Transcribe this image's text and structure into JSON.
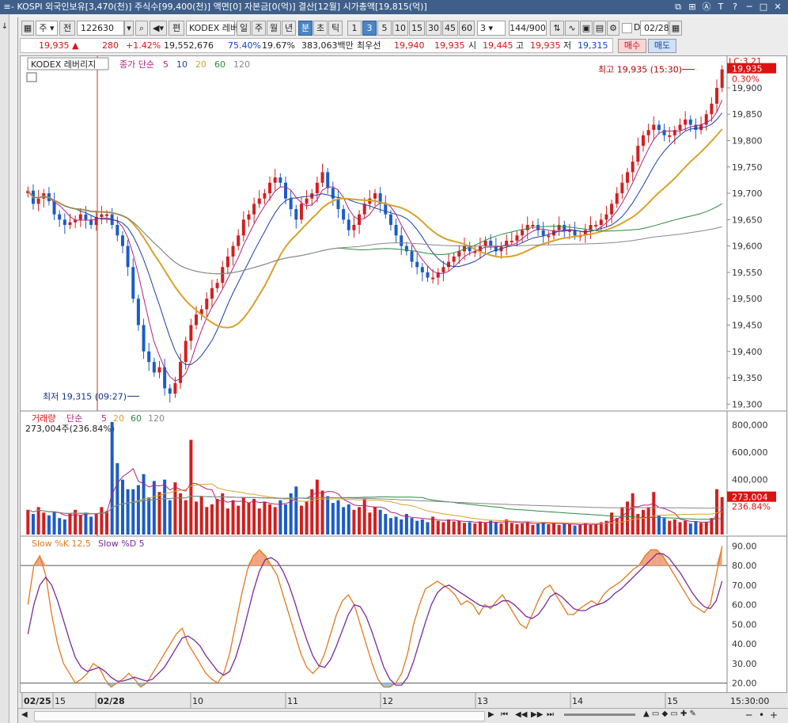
{
  "titlebar": {
    "menu_icon": "menu-icon",
    "title": "- KOSPI  외국인보유[3,470(천)]  주식수[99,400(천)]  액면[0]  자본금[0(억)]  결산[12월]  시가총액[19,815(억)]",
    "window_buttons": [
      "⧉",
      "⊞",
      "Ⓐ",
      "T",
      "?",
      "─",
      "□",
      "✕"
    ]
  },
  "toolbar": {
    "type_label": "주",
    "jeon_label": "전",
    "code": "122630",
    "pyeon_label": "편",
    "name": "KODEX 레버",
    "periods": [
      "일",
      "주",
      "월",
      "년",
      "분",
      "초",
      "틱"
    ],
    "active_period": "분",
    "intervals": [
      "1",
      "3",
      "5",
      "10",
      "15",
      "30",
      "45",
      "60"
    ],
    "active_interval": "3",
    "count_value": "3",
    "range": "144/900",
    "date": "02/28",
    "d_label": "D"
  },
  "quote": {
    "price": "19,935",
    "up_arrow": "▲",
    "change": "280",
    "change_pct": "+1.42%",
    "volume": "19,552,676",
    "vol_ratio": "75.40%",
    "turnover": "19.67%",
    "amount": "383,063백만",
    "best_label": "최우선",
    "ask": "19,940",
    "bid": "19,935",
    "open_label": "시",
    "open": "19,445",
    "high_label": "고",
    "high": "19,935",
    "low_label": "저",
    "low": "19,315",
    "buy_label": "매수",
    "sell_label": "매도"
  },
  "chart_data": [
    {
      "type": "candlestick",
      "name": "price-panel",
      "title": "KODEX 레버리지",
      "indicator_label": "종가 단순",
      "ma_periods": [
        "5",
        "10",
        "20",
        "60",
        "120"
      ],
      "ylim": [
        19290,
        19960
      ],
      "yticks": [
        "19,900",
        "19,850",
        "19,800",
        "19,750",
        "19,700",
        "19,650",
        "19,600",
        "19,550",
        "19,500",
        "19,450",
        "19,400",
        "19,350",
        "19,300"
      ],
      "current_price_label": "19,935",
      "current_pct_label": "0.30%",
      "lc_label": "LC:3.21",
      "high_annotation": "최고 19,935 (15:30)",
      "low_annotation": "최저 19,315 (09:27)",
      "closes": [
        19705,
        19680,
        19690,
        19700,
        19685,
        19660,
        19650,
        19640,
        19645,
        19650,
        19660,
        19650,
        19640,
        19655,
        19660,
        19660,
        19640,
        19620,
        19600,
        19560,
        19500,
        19450,
        19400,
        19380,
        19360,
        19370,
        19330,
        19320,
        19340,
        19380,
        19420,
        19450,
        19470,
        19480,
        19500,
        19520,
        19530,
        19560,
        19580,
        19600,
        19620,
        19650,
        19660,
        19680,
        19690,
        19700,
        19720,
        19730,
        19720,
        19690,
        19670,
        19650,
        19680,
        19690,
        19700,
        19720,
        19740,
        19710,
        19690,
        19670,
        19650,
        19630,
        19640,
        19660,
        19680,
        19690,
        19700,
        19680,
        19660,
        19640,
        19620,
        19600,
        19590,
        19570,
        19560,
        19550,
        19540,
        19540,
        19550,
        19560,
        19570,
        19580,
        19590,
        19600,
        19590,
        19590,
        19600,
        19610,
        19600,
        19590,
        19600,
        19610,
        19610,
        19620,
        19630,
        19640,
        19640,
        19630,
        19620,
        19620,
        19630,
        19640,
        19630,
        19630,
        19620,
        19620,
        19630,
        19640,
        19640,
        19650,
        19660,
        19680,
        19700,
        19720,
        19740,
        19760,
        19790,
        19810,
        19820,
        19830,
        19820,
        19810,
        19810,
        19820,
        19830,
        19840,
        19830,
        19820,
        19830,
        19850,
        19870,
        19900,
        19935
      ]
    },
    {
      "type": "bar",
      "name": "volume-panel",
      "title": "거래량",
      "indicator_label": "단순",
      "ma_periods": [
        "5",
        "20",
        "60",
        "120"
      ],
      "current_label": "273,004주(236.84%)",
      "yticks": [
        "800,000",
        "600,000",
        "400,000"
      ],
      "current_value_label": "273,004",
      "current_pct_label": "236.84%",
      "values": [
        180000,
        150000,
        200000,
        160000,
        140000,
        170000,
        120000,
        110000,
        150000,
        180000,
        140000,
        160000,
        130000,
        150000,
        200000,
        170000,
        820000,
        520000,
        400000,
        330000,
        330000,
        360000,
        440000,
        270000,
        390000,
        310000,
        400000,
        250000,
        380000,
        300000,
        250000,
        690000,
        240000,
        280000,
        200000,
        220000,
        260000,
        300000,
        190000,
        250000,
        210000,
        270000,
        230000,
        260000,
        190000,
        240000,
        220000,
        200000,
        250000,
        220000,
        300000,
        350000,
        210000,
        240000,
        330000,
        400000,
        320000,
        280000,
        230000,
        250000,
        200000,
        220000,
        180000,
        200000,
        260000,
        160000,
        200000,
        180000,
        150000,
        120000,
        130000,
        110000,
        150000,
        120000,
        100000,
        110000,
        90000,
        130000,
        100000,
        90000,
        110000,
        95000,
        100000,
        85000,
        90000,
        80000,
        95000,
        85000,
        100000,
        90000,
        80000,
        110000,
        85000,
        75000,
        80000,
        95000,
        70000,
        80000,
        90000,
        75000,
        85000,
        70000,
        80000,
        75000,
        65000,
        70000,
        85000,
        70000,
        75000,
        90000,
        100000,
        160000,
        120000,
        200000,
        240000,
        300000,
        150000,
        180000,
        200000,
        310000,
        140000,
        120000,
        100000,
        110000,
        90000,
        100000,
        80000,
        95000,
        85000,
        90000,
        120000,
        330000,
        273004
      ]
    },
    {
      "type": "line",
      "name": "stochastic-panel",
      "title": "Slow %K 12,5",
      "title2": "Slow %D 5",
      "ylim": [
        15,
        95
      ],
      "yticks": [
        "90.00",
        "80.00",
        "70.00",
        "60.00",
        "50.00",
        "40.00",
        "30.00",
        "20.00"
      ],
      "k": [
        60,
        80,
        85,
        75,
        55,
        40,
        30,
        25,
        20,
        22,
        25,
        30,
        28,
        22,
        18,
        20,
        22,
        25,
        22,
        18,
        20,
        25,
        30,
        35,
        40,
        45,
        48,
        40,
        35,
        30,
        25,
        22,
        20,
        25,
        35,
        50,
        65,
        78,
        85,
        88,
        85,
        80,
        75,
        65,
        55,
        45,
        35,
        28,
        25,
        28,
        35,
        45,
        55,
        62,
        65,
        60,
        50,
        40,
        30,
        22,
        18,
        18,
        20,
        25,
        35,
        50,
        60,
        68,
        70,
        72,
        70,
        68,
        65,
        60,
        62,
        60,
        55,
        60,
        58,
        62,
        65,
        60,
        55,
        50,
        48,
        55,
        62,
        68,
        70,
        65,
        60,
        55,
        55,
        58,
        60,
        62,
        60,
        65,
        68,
        70,
        72,
        75,
        78,
        80,
        85,
        88,
        88,
        85,
        80,
        75,
        70,
        65,
        60,
        58,
        56,
        60,
        75,
        90
      ],
      "d": [
        45,
        60,
        70,
        74,
        70,
        62,
        52,
        42,
        33,
        28,
        26,
        27,
        28,
        26,
        23,
        21,
        21,
        22,
        23,
        22,
        21,
        22,
        25,
        28,
        33,
        38,
        43,
        44,
        42,
        39,
        34,
        30,
        26,
        24,
        26,
        33,
        43,
        55,
        67,
        77,
        83,
        84,
        82,
        77,
        70,
        61,
        51,
        42,
        34,
        29,
        28,
        32,
        39,
        47,
        55,
        60,
        59,
        54,
        46,
        37,
        28,
        22,
        19,
        19,
        23,
        31,
        41,
        51,
        60,
        66,
        69,
        70,
        68,
        66,
        64,
        62,
        60,
        59,
        59,
        60,
        62,
        62,
        60,
        57,
        54,
        53,
        55,
        59,
        64,
        66,
        64,
        61,
        58,
        57,
        57,
        59,
        60,
        61,
        63,
        66,
        68,
        71,
        74,
        77,
        80,
        83,
        86,
        86,
        84,
        80,
        76,
        71,
        66,
        62,
        59,
        58,
        62,
        72
      ]
    }
  ],
  "xaxis": {
    "labels": [
      "02/25",
      "15",
      "02/28",
      "10",
      "11",
      "12",
      "13",
      "14",
      "15"
    ],
    "time_label": "15:30:00"
  },
  "bottombar": {
    "nav_buttons": [
      "▶",
      "⏮",
      "◀◀",
      "▶▶",
      "⏭"
    ],
    "zoom_buttons": [
      "─",
      "•",
      "+"
    ]
  }
}
